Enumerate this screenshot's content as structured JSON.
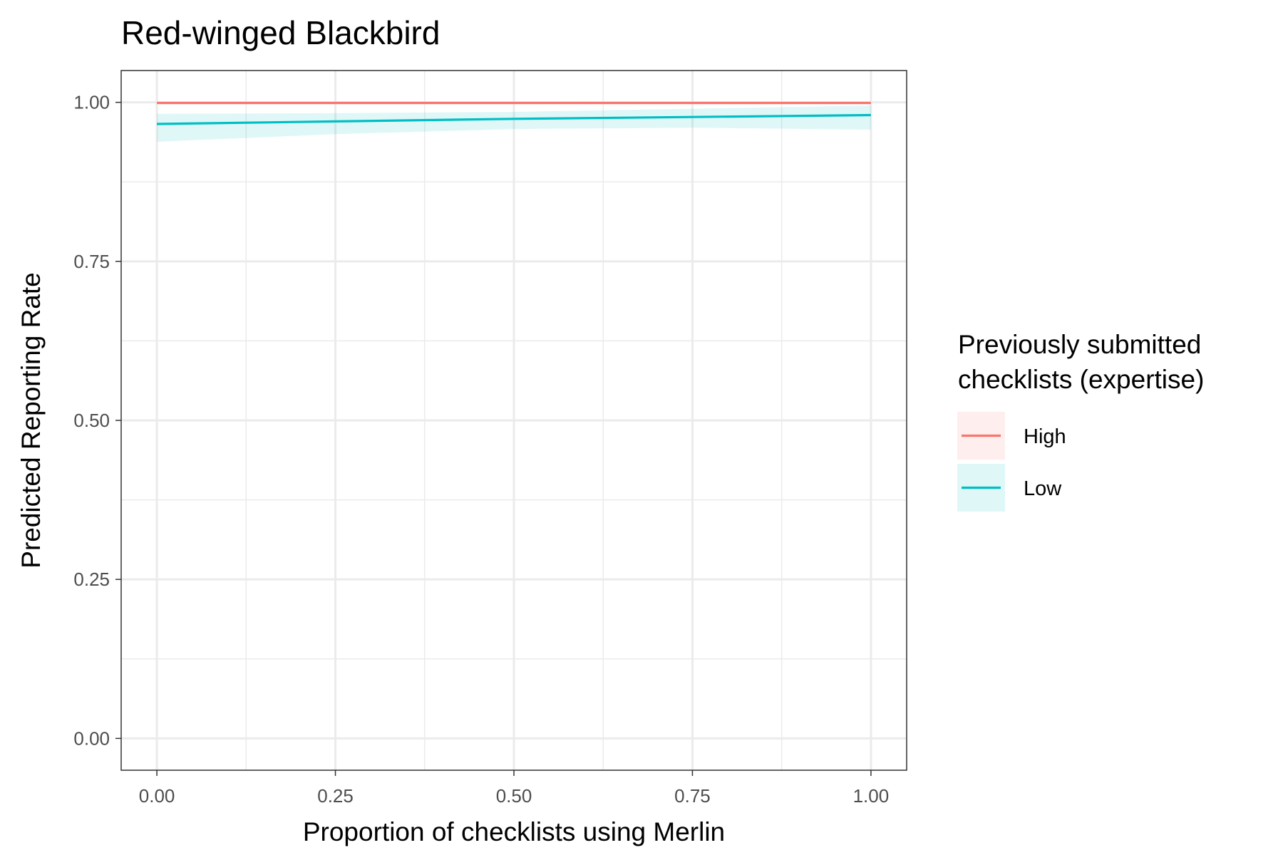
{
  "chart_data": {
    "type": "line",
    "title": "Red-winged Blackbird",
    "xlabel": "Proportion of checklists using Merlin",
    "ylabel": "Predicted Reporting Rate",
    "xlim": [
      -0.05,
      1.05
    ],
    "ylim": [
      -0.05,
      1.05
    ],
    "x_ticks": [
      0,
      0.25,
      0.5,
      0.75,
      1
    ],
    "x_tick_labels": [
      "0.00",
      "0.25",
      "0.50",
      "0.75",
      "1.00"
    ],
    "y_ticks": [
      0,
      0.25,
      0.5,
      0.75,
      1
    ],
    "y_tick_labels": [
      "0.00",
      "0.25",
      "0.50",
      "0.75",
      "1.00"
    ],
    "grid": true,
    "legend": {
      "title_lines": [
        "Previously submitted",
        "checklists (expertise)"
      ],
      "position": "right"
    },
    "series": [
      {
        "name": "High",
        "color": "#F8766D",
        "x": [
          0,
          1
        ],
        "y": [
          0.999,
          0.999
        ],
        "lower": [
          0.998,
          0.998
        ],
        "upper": [
          1.0,
          1.0
        ]
      },
      {
        "name": "Low",
        "color": "#00BFC4",
        "x": [
          0,
          0.25,
          0.5,
          0.75,
          1
        ],
        "y": [
          0.966,
          0.97,
          0.974,
          0.977,
          0.98
        ],
        "lower": [
          0.938,
          0.95,
          0.958,
          0.96,
          0.957
        ],
        "upper": [
          0.982,
          0.983,
          0.985,
          0.99,
          0.995
        ]
      }
    ]
  }
}
